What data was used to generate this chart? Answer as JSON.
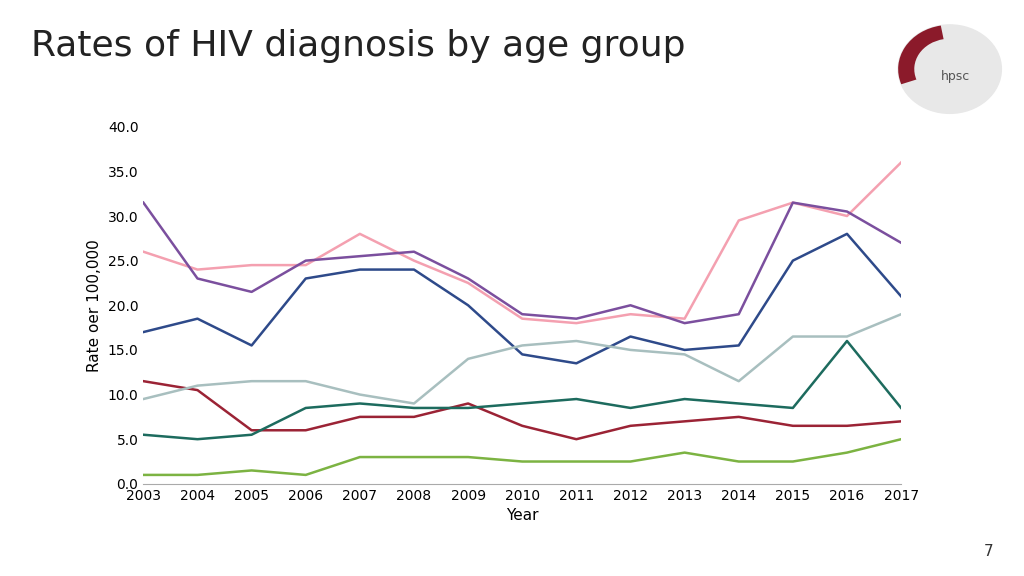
{
  "title": "Rates of HIV diagnosis by age group",
  "xlabel": "Year",
  "ylabel": "Rate oer 100,000",
  "years": [
    2003,
    2004,
    2005,
    2006,
    2007,
    2008,
    2009,
    2010,
    2011,
    2012,
    2013,
    2014,
    2015,
    2016,
    2017
  ],
  "series": {
    "15-24": {
      "values": [
        11.5,
        10.5,
        6.0,
        6.0,
        7.5,
        7.5,
        9.0,
        6.5,
        5.0,
        6.5,
        7.0,
        7.5,
        6.5,
        6.5,
        7.0
      ],
      "color": "#9B2335"
    },
    "25-29": {
      "values": [
        26.0,
        24.0,
        24.5,
        24.5,
        28.0,
        25.0,
        22.5,
        18.5,
        18.0,
        19.0,
        18.5,
        29.5,
        31.5,
        30.0,
        36.0
      ],
      "color": "#F4A0B0"
    },
    "30-34": {
      "values": [
        31.5,
        23.0,
        21.5,
        25.0,
        25.5,
        26.0,
        23.0,
        19.0,
        18.5,
        20.0,
        18.0,
        19.0,
        31.5,
        30.5,
        27.0
      ],
      "color": "#7B4F9E"
    },
    "35-39": {
      "values": [
        17.0,
        18.5,
        15.5,
        23.0,
        24.0,
        24.0,
        20.0,
        14.5,
        13.5,
        16.5,
        15.0,
        15.5,
        25.0,
        28.0,
        21.0
      ],
      "color": "#2E4A8A"
    },
    "40-44": {
      "values": [
        9.5,
        11.0,
        11.5,
        11.5,
        10.0,
        9.0,
        14.0,
        15.5,
        16.0,
        15.0,
        14.5,
        11.5,
        16.5,
        16.5,
        19.0
      ],
      "color": "#A8BFBF"
    },
    "45-49": {
      "values": [
        5.5,
        5.0,
        5.5,
        8.5,
        9.0,
        8.5,
        8.5,
        9.0,
        9.5,
        8.5,
        9.5,
        9.0,
        8.5,
        16.0,
        8.5
      ],
      "color": "#1D6B5E"
    },
    "50+": {
      "values": [
        1.0,
        1.0,
        1.5,
        1.0,
        3.0,
        3.0,
        3.0,
        2.5,
        2.5,
        2.5,
        3.5,
        2.5,
        2.5,
        3.5,
        5.0
      ],
      "color": "#7CB342"
    }
  },
  "ylim": [
    0,
    40
  ],
  "yticks": [
    0.0,
    5.0,
    10.0,
    15.0,
    20.0,
    25.0,
    30.0,
    35.0,
    40.0
  ],
  "background_color": "#FFFFFF",
  "title_fontsize": 26,
  "axis_fontsize": 11,
  "tick_fontsize": 10,
  "legend_fontsize": 10,
  "red_bar_color": "#C0002A",
  "page_number": "7"
}
